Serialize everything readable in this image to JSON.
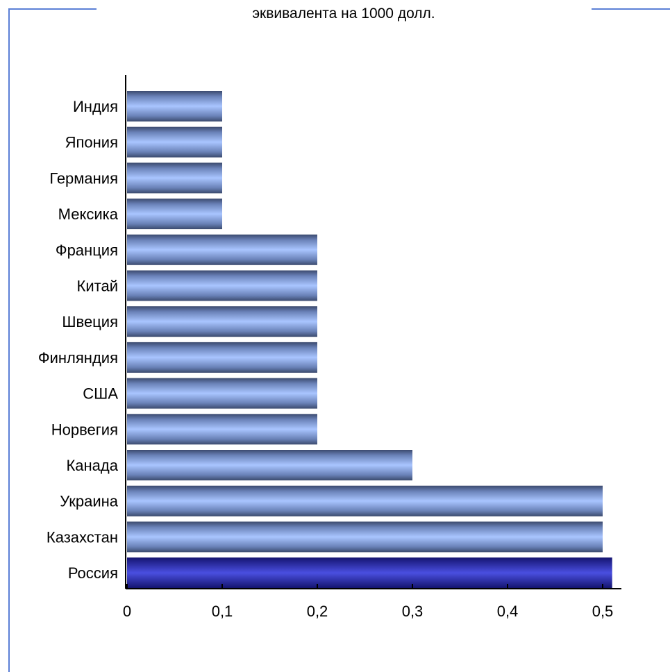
{
  "chart_data": {
    "type": "bar",
    "orientation": "horizontal",
    "title_lines": [
      "",
      "эквивалента на 1000 долл."
    ],
    "categories": [
      "Индия",
      "Япония",
      "Германия",
      "Мексика",
      "Франция",
      "Китай",
      "Швеция",
      "Финляндия",
      "США",
      "Норвегия",
      "Канада",
      "Украина",
      "Казахстан",
      "Россия"
    ],
    "values": [
      0.1,
      0.1,
      0.1,
      0.1,
      0.2,
      0.2,
      0.2,
      0.2,
      0.2,
      0.2,
      0.3,
      0.5,
      0.5,
      0.51
    ],
    "highlight_category": "Россия",
    "x_ticks": [
      "0",
      "0,1",
      "0,2",
      "0,3",
      "0,4",
      "0,5"
    ],
    "xlim": [
      0,
      0.52
    ],
    "xlabel": "",
    "ylabel": "",
    "grid": false,
    "legend": "none",
    "colors": {
      "bar_light": "#a9c5ff",
      "bar_dark": "#3b4a6e",
      "highlight_light": "#4a4fe0",
      "highlight_dark": "#141470",
      "frame": "#5b7fd6",
      "axis": "#000000"
    }
  }
}
